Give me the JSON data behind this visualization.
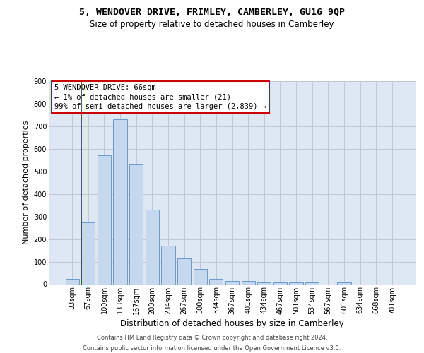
{
  "title": "5, WENDOVER DRIVE, FRIMLEY, CAMBERLEY, GU16 9QP",
  "subtitle": "Size of property relative to detached houses in Camberley",
  "xlabel": "Distribution of detached houses by size in Camberley",
  "ylabel": "Number of detached properties",
  "categories": [
    "33sqm",
    "67sqm",
    "100sqm",
    "133sqm",
    "167sqm",
    "200sqm",
    "234sqm",
    "267sqm",
    "300sqm",
    "334sqm",
    "367sqm",
    "401sqm",
    "434sqm",
    "467sqm",
    "501sqm",
    "534sqm",
    "567sqm",
    "601sqm",
    "634sqm",
    "668sqm",
    "701sqm"
  ],
  "values": [
    22,
    275,
    570,
    730,
    530,
    330,
    170,
    115,
    68,
    22,
    15,
    13,
    8,
    9,
    8,
    8,
    0,
    8,
    0,
    0,
    0
  ],
  "bar_color": "#c5d8f0",
  "bar_edge_color": "#5a8fc8",
  "highlight_color": "#cc0000",
  "annotation_text": "5 WENDOVER DRIVE: 66sqm\n← 1% of detached houses are smaller (21)\n99% of semi-detached houses are larger (2,839) →",
  "annotation_box_color": "#cc0000",
  "ylim": [
    0,
    900
  ],
  "yticks": [
    0,
    100,
    200,
    300,
    400,
    500,
    600,
    700,
    800,
    900
  ],
  "grid_color": "#c0c8d8",
  "bg_color": "#dde8f4",
  "footer_line1": "Contains HM Land Registry data © Crown copyright and database right 2024.",
  "footer_line2": "Contains public sector information licensed under the Open Government Licence v3.0.",
  "title_fontsize": 9.5,
  "subtitle_fontsize": 8.5,
  "xlabel_fontsize": 8.5,
  "ylabel_fontsize": 8,
  "tick_fontsize": 7,
  "annotation_fontsize": 7.5,
  "footer_fontsize": 6
}
